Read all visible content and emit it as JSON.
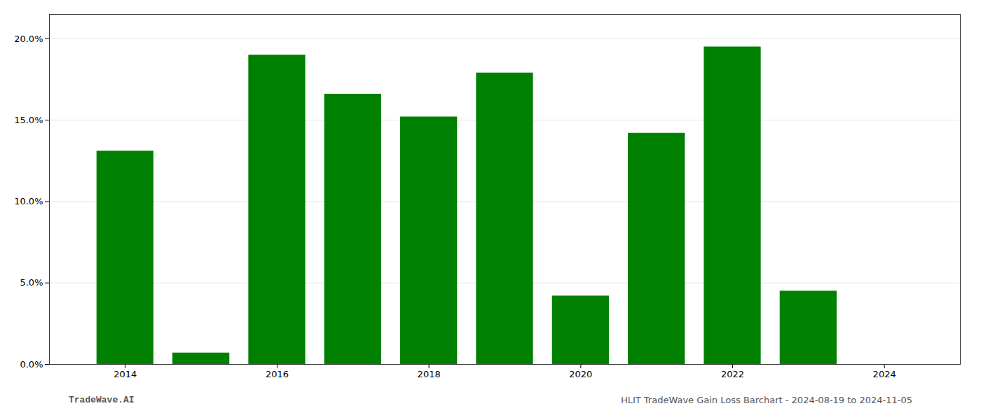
{
  "chart_data": {
    "type": "bar",
    "x": [
      2014,
      2015,
      2016,
      2017,
      2018,
      2019,
      2020,
      2021,
      2022,
      2023,
      2024
    ],
    "values": [
      0.131,
      0.007,
      0.19,
      0.166,
      0.152,
      0.179,
      0.042,
      0.142,
      0.195,
      0.045,
      0.0
    ],
    "color": "#008000",
    "xlim": [
      2013.0,
      2025.0
    ],
    "xticks": [
      2014,
      2016,
      2018,
      2020,
      2022,
      2024
    ],
    "ylim": [
      0,
      0.215
    ],
    "yticks": [
      {
        "value": 0.0,
        "label": "0.0%"
      },
      {
        "value": 0.05,
        "label": "5.0%"
      },
      {
        "value": 0.1,
        "label": "10.0%"
      },
      {
        "value": 0.15,
        "label": "15.0%"
      },
      {
        "value": 0.2,
        "label": "20.0%"
      }
    ],
    "grid": true,
    "annotations": [
      "TradeWave.AI",
      "HLIT TradeWave Gain Loss Barchart - 2024-08-19 to 2024-11-05"
    ]
  }
}
